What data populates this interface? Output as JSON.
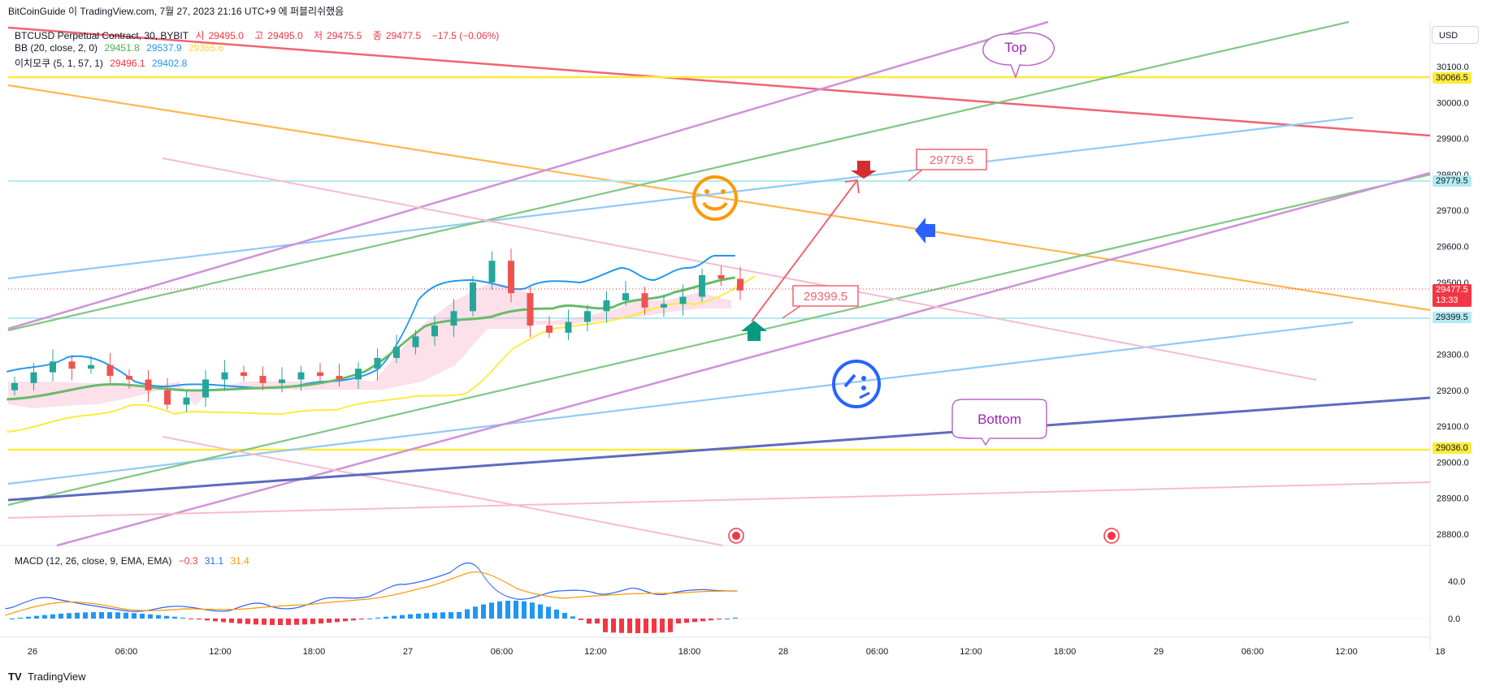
{
  "header": {
    "text": "BitCoinGuide 이 TradingView.com, 7월 27, 2023 21:16 UTC+9 에 퍼블리쉬했음"
  },
  "legend": {
    "symbol": "BTCUSD Perpetual Contract, 30, BYBIT",
    "ohlc": [
      {
        "label": "시",
        "value": "29495.0"
      },
      {
        "label": "고",
        "value": "29495.0"
      },
      {
        "label": "저",
        "value": "29475.5"
      },
      {
        "label": "종",
        "value": "29477.5"
      }
    ],
    "change": "−17.5 (−0.06%)",
    "bb": {
      "label": "BB (20, close, 2, 0)",
      "values": [
        "29451.8",
        "29537.9",
        "29365.6"
      ]
    },
    "ichimoku": {
      "label": "이치모쿠 (5, 1, 57, 1)",
      "values": [
        "29496.1",
        "29402.8"
      ]
    },
    "macd": {
      "label": "MACD (12, 26, close, 9, EMA, EMA)",
      "values": [
        "−0.3",
        "31.1",
        "31.4"
      ]
    }
  },
  "currency_button": "USD",
  "price_axis": {
    "ticks": [
      "30100.0",
      "30000.0",
      "29900.0",
      "29800.0",
      "29700.0",
      "29600.0",
      "29500.0",
      "29400.0",
      "29300.0",
      "29200.0",
      "29100.0",
      "29000.0",
      "28900.0",
      "28800.0"
    ],
    "tags": [
      {
        "value": "30066.5",
        "price": 30066.5,
        "bg": "#ffeb3b",
        "fg": "#131722"
      },
      {
        "value": "29779.5",
        "price": 29779.5,
        "bg": "#b2ebf2",
        "fg": "#131722"
      },
      {
        "value": "29477.5",
        "price": 29477.5,
        "bg": "#f23645",
        "fg": "#ffffff",
        "sub": "13:33"
      },
      {
        "value": "29399.5",
        "price": 29399.5,
        "bg": "#b2ebf2",
        "fg": "#131722"
      },
      {
        "value": "29036.0",
        "price": 29036.0,
        "bg": "#ffeb3b",
        "fg": "#131722"
      }
    ]
  },
  "macd_axis": {
    "ticks": [
      "40.0",
      "0.0"
    ]
  },
  "time_axis": {
    "labels": [
      "26",
      "06:00",
      "12:00",
      "18:00",
      "27",
      "06:00",
      "12:00",
      "18:00",
      "28",
      "06:00",
      "12:00",
      "18:00",
      "29",
      "06:00",
      "12:00",
      "18"
    ]
  },
  "annotations": {
    "top_label": "Top",
    "bottom_label": "Bottom",
    "target_high": "29779.5",
    "target_low": "29399.5"
  },
  "colors": {
    "up": "#26a69a",
    "down": "#ef5350",
    "bb_upper": "#2196f3",
    "bb_basis": "#4caf50",
    "bb_lower": "#ffeb3b",
    "red_line": "#f23645",
    "orange_line": "#ff9800",
    "purple_line": "#ce93d8",
    "green_line": "#81c784",
    "blue_line": "#90caf9",
    "navy_line": "#3f51b5",
    "pink_line": "#f8bbd0",
    "yellow_line": "#ffeb3b",
    "cyan_line": "#b2ebf2"
  },
  "footer": {
    "brand": "TradingView"
  },
  "chart_data": {
    "type": "candlestick",
    "timeframe": "30",
    "y_range": [
      28770,
      30180
    ],
    "series_close_approx": [
      29220,
      29250,
      29280,
      29260,
      29270,
      29240,
      29230,
      29200,
      29160,
      29180,
      29230,
      29250,
      29240,
      29220,
      29230,
      29250,
      29240,
      29230,
      29260,
      29290,
      29320,
      29350,
      29380,
      29420,
      29500,
      29560,
      29470,
      29380,
      29360,
      29390,
      29420,
      29450,
      29470,
      29430,
      29440,
      29460,
      29520,
      29510,
      29477.5
    ],
    "levels": [
      30066.5,
      29779.5,
      29399.5,
      29036.0
    ],
    "current_price": 29477.5
  }
}
